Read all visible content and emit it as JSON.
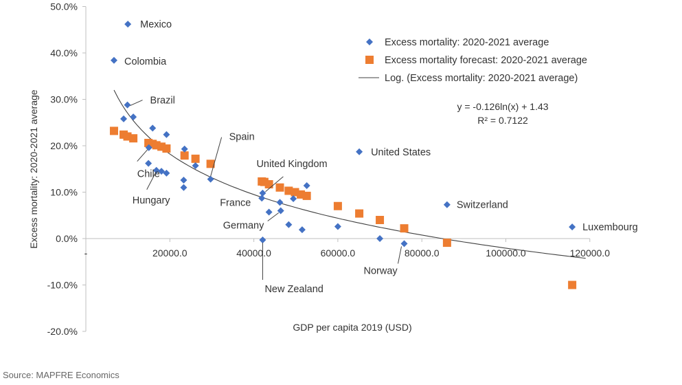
{
  "source": "Source: MAPFRE Economics",
  "chart_data": {
    "type": "scatter",
    "xlabel": "GDP per capita 2019 (USD)",
    "ylabel": "Excess mortality: 2020-2021 average",
    "xlim": [
      0,
      120000
    ],
    "ylim": [
      -20,
      50
    ],
    "x_ticks": [
      {
        "value": 0,
        "label": "-"
      },
      {
        "value": 20000,
        "label": "20000.0"
      },
      {
        "value": 40000,
        "label": "40000.0"
      },
      {
        "value": 60000,
        "label": "60000.0"
      },
      {
        "value": 80000,
        "label": "80000.0"
      },
      {
        "value": 100000,
        "label": "100000.0"
      },
      {
        "value": 120000,
        "label": "120000.0"
      }
    ],
    "y_ticks": [
      {
        "value": 50,
        "label": "50.0%"
      },
      {
        "value": 40,
        "label": "40.0%"
      },
      {
        "value": 30,
        "label": "30.0%"
      },
      {
        "value": 20,
        "label": "20.0%"
      },
      {
        "value": 10,
        "label": "10.0%"
      },
      {
        "value": 0,
        "label": "0.0%"
      },
      {
        "value": -10,
        "label": "-10.0%"
      },
      {
        "value": -20,
        "label": "-20.0%"
      }
    ],
    "grid": false,
    "legend_position": "top-right",
    "colors": {
      "actual": "#4472c4",
      "forecast": "#ed7d31",
      "trend": "#404040"
    },
    "series": [
      {
        "name": "Excess mortality: 2020-2021 average",
        "marker": "diamond",
        "points": [
          {
            "x": 10000,
            "y": 46.2
          },
          {
            "x": 6700,
            "y": 38.4
          },
          {
            "x": 9000,
            "y": 25.8
          },
          {
            "x": 9900,
            "y": 28.8
          },
          {
            "x": 11300,
            "y": 26.2
          },
          {
            "x": 15900,
            "y": 23.8
          },
          {
            "x": 19200,
            "y": 22.4
          },
          {
            "x": 15000,
            "y": 19.6
          },
          {
            "x": 14900,
            "y": 16.2
          },
          {
            "x": 16800,
            "y": 14.7
          },
          {
            "x": 18000,
            "y": 14.5
          },
          {
            "x": 19200,
            "y": 14.1
          },
          {
            "x": 23500,
            "y": 19.3
          },
          {
            "x": 23300,
            "y": 12.6
          },
          {
            "x": 23300,
            "y": 11.0
          },
          {
            "x": 26100,
            "y": 15.7
          },
          {
            "x": 29700,
            "y": 12.8
          },
          {
            "x": 42100,
            "y": 9.8
          },
          {
            "x": 41900,
            "y": 8.7
          },
          {
            "x": 43600,
            "y": 5.7
          },
          {
            "x": 46200,
            "y": 7.8
          },
          {
            "x": 46400,
            "y": 6.0
          },
          {
            "x": 48300,
            "y": 3.0
          },
          {
            "x": 49400,
            "y": 8.6
          },
          {
            "x": 51500,
            "y": 1.9
          },
          {
            "x": 52600,
            "y": 11.4
          },
          {
            "x": 60000,
            "y": 2.6
          },
          {
            "x": 65100,
            "y": 18.7
          },
          {
            "x": 70000,
            "y": 0.0
          },
          {
            "x": 75800,
            "y": -1.1
          },
          {
            "x": 86000,
            "y": 7.3
          },
          {
            "x": 115800,
            "y": 2.5
          },
          {
            "x": 42100,
            "y": -0.3
          }
        ]
      },
      {
        "name": "Excess mortality forecast: 2020-2021 average",
        "marker": "square",
        "points": [
          {
            "x": 6700,
            "y": 23.2
          },
          {
            "x": 9000,
            "y": 22.4
          },
          {
            "x": 9900,
            "y": 22.0
          },
          {
            "x": 11300,
            "y": 21.6
          },
          {
            "x": 14900,
            "y": 20.6
          },
          {
            "x": 15900,
            "y": 20.4
          },
          {
            "x": 16800,
            "y": 20.1
          },
          {
            "x": 18000,
            "y": 19.8
          },
          {
            "x": 19200,
            "y": 19.4
          },
          {
            "x": 23500,
            "y": 17.9
          },
          {
            "x": 26100,
            "y": 17.2
          },
          {
            "x": 29700,
            "y": 16.1
          },
          {
            "x": 41900,
            "y": 12.3
          },
          {
            "x": 42500,
            "y": 12.2
          },
          {
            "x": 43600,
            "y": 11.7
          },
          {
            "x": 46200,
            "y": 11.0
          },
          {
            "x": 48300,
            "y": 10.3
          },
          {
            "x": 49800,
            "y": 10.0
          },
          {
            "x": 51200,
            "y": 9.5
          },
          {
            "x": 52600,
            "y": 9.2
          },
          {
            "x": 60000,
            "y": 7.0
          },
          {
            "x": 65100,
            "y": 5.4
          },
          {
            "x": 70000,
            "y": 4.0
          },
          {
            "x": 75800,
            "y": 2.2
          },
          {
            "x": 86000,
            "y": -0.9
          },
          {
            "x": 115800,
            "y": -10.0
          }
        ]
      },
      {
        "name": "Log. (Excess mortality: 2020-2021 average)",
        "type": "trendline",
        "equation": "y = -0.126ln(x) + 1.43",
        "r_squared": "R² = 0.7122",
        "a": -0.126,
        "b": 1.43,
        "x_range": [
          6700,
          119000
        ]
      }
    ],
    "annotations": [
      {
        "text": "Mexico",
        "x": 10000,
        "y": 46.2
      },
      {
        "text": "Colombia",
        "x": 6700,
        "y": 38.4
      },
      {
        "text": "Brazil",
        "x": 9900,
        "y": 28.8
      },
      {
        "text": "Chile",
        "x": 15000,
        "y": 19.6
      },
      {
        "text": "Hungary",
        "x": 16800,
        "y": 14.7
      },
      {
        "text": "Spain",
        "x": 29700,
        "y": 12.8
      },
      {
        "text": "United Kingdom",
        "x": 42100,
        "y": 9.8
      },
      {
        "text": "France",
        "x": 41900,
        "y": 8.7
      },
      {
        "text": "Germany",
        "x": 46400,
        "y": 6.0
      },
      {
        "text": "New Zealand",
        "x": 42100,
        "y": -0.3
      },
      {
        "text": "United States",
        "x": 65100,
        "y": 18.7
      },
      {
        "text": "Switzerland",
        "x": 86000,
        "y": 7.3
      },
      {
        "text": "Norway",
        "x": 75800,
        "y": -1.1
      },
      {
        "text": "Luxembourg",
        "x": 115800,
        "y": 2.5
      }
    ]
  }
}
